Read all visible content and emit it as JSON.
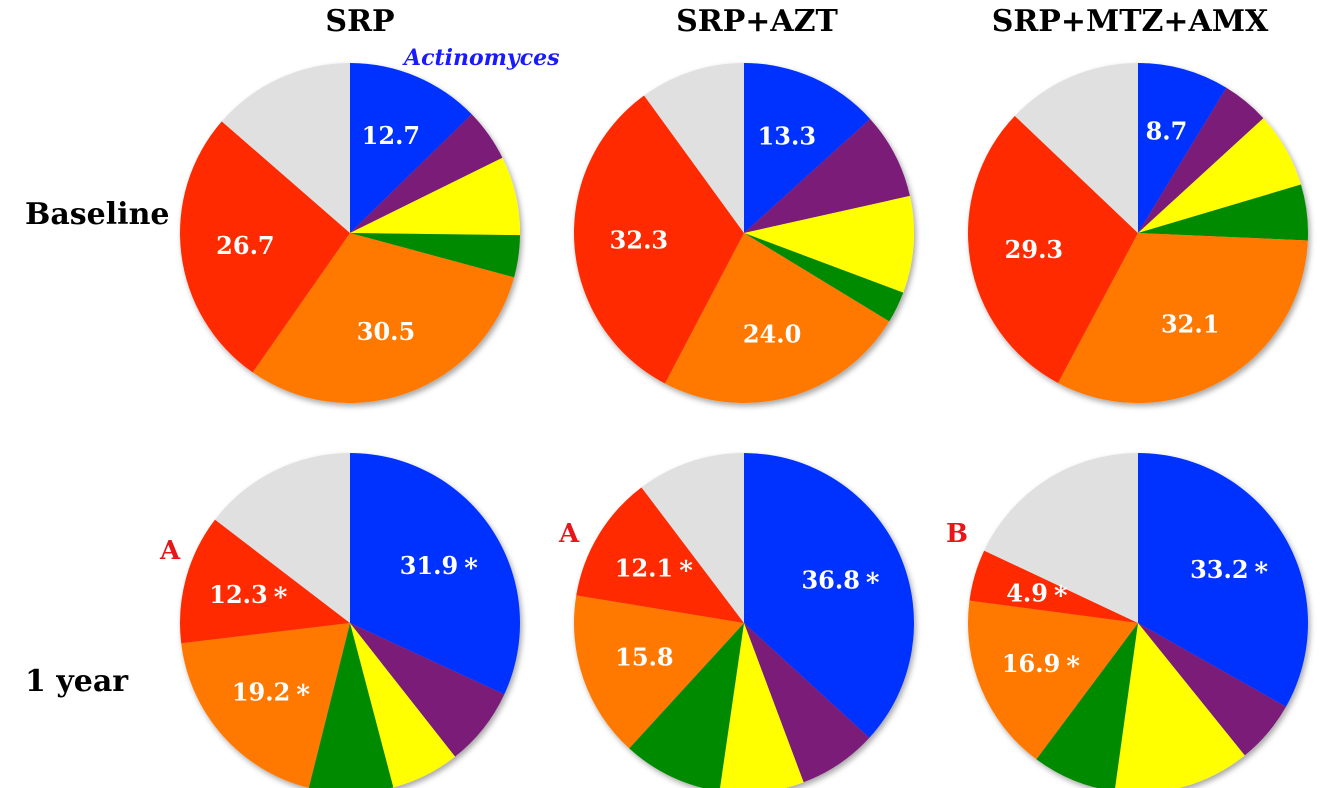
{
  "colors": {
    "blue": "#0033ff",
    "purple": "#7a1a78",
    "yellow": "#ffff00",
    "green": "#008a00",
    "orange": "#ff7800",
    "red": "#ff2a00",
    "gray": "#e0e0e0",
    "letter_red": "#e8151b",
    "annotation_blue": "#1a1aff"
  },
  "columns": [
    "SRP",
    "SRP+AZT",
    "SRP+MTZ+AMX"
  ],
  "rows": [
    "Baseline",
    "1 year"
  ],
  "annotation": "Actinomyces",
  "chart_data": [
    {
      "type": "pie",
      "column": "SRP",
      "row": "Baseline",
      "slices": [
        {
          "color": "blue",
          "value": 12.7,
          "label": "12.7"
        },
        {
          "color": "purple",
          "value": 5.0,
          "label": ""
        },
        {
          "color": "yellow",
          "value": 7.5,
          "label": ""
        },
        {
          "color": "green",
          "value": 4.0,
          "label": ""
        },
        {
          "color": "orange",
          "value": 30.5,
          "label": "30.5"
        },
        {
          "color": "red",
          "value": 26.7,
          "label": "26.7"
        },
        {
          "color": "gray",
          "value": 13.6,
          "label": ""
        }
      ]
    },
    {
      "type": "pie",
      "column": "SRP+AZT",
      "row": "Baseline",
      "slices": [
        {
          "color": "blue",
          "value": 13.3,
          "label": "13.3"
        },
        {
          "color": "purple",
          "value": 8.2,
          "label": ""
        },
        {
          "color": "yellow",
          "value": 9.2,
          "label": ""
        },
        {
          "color": "green",
          "value": 3.0,
          "label": ""
        },
        {
          "color": "orange",
          "value": 24.0,
          "label": "24.0"
        },
        {
          "color": "red",
          "value": 32.3,
          "label": "32.3"
        },
        {
          "color": "gray",
          "value": 10.0,
          "label": ""
        }
      ]
    },
    {
      "type": "pie",
      "column": "SRP+MTZ+AMX",
      "row": "Baseline",
      "slices": [
        {
          "color": "blue",
          "value": 8.7,
          "label": "8.7"
        },
        {
          "color": "purple",
          "value": 4.5,
          "label": ""
        },
        {
          "color": "yellow",
          "value": 7.2,
          "label": ""
        },
        {
          "color": "green",
          "value": 5.3,
          "label": ""
        },
        {
          "color": "orange",
          "value": 32.1,
          "label": "32.1"
        },
        {
          "color": "red",
          "value": 29.3,
          "label": "29.3"
        },
        {
          "color": "gray",
          "value": 12.9,
          "label": ""
        }
      ]
    },
    {
      "type": "pie",
      "column": "SRP",
      "row": "1 year",
      "letter": "A",
      "slices": [
        {
          "color": "blue",
          "value": 31.9,
          "label": "31.9",
          "significant": true
        },
        {
          "color": "purple",
          "value": 7.5,
          "label": ""
        },
        {
          "color": "yellow",
          "value": 6.5,
          "label": ""
        },
        {
          "color": "green",
          "value": 8.0,
          "label": ""
        },
        {
          "color": "orange",
          "value": 19.2,
          "label": "19.2",
          "significant": true
        },
        {
          "color": "red",
          "value": 12.3,
          "label": "12.3",
          "significant": true
        },
        {
          "color": "gray",
          "value": 14.6,
          "label": ""
        }
      ]
    },
    {
      "type": "pie",
      "column": "SRP+AZT",
      "row": "1 year",
      "letter": "A",
      "slices": [
        {
          "color": "blue",
          "value": 36.8,
          "label": "36.8",
          "significant": true
        },
        {
          "color": "purple",
          "value": 7.5,
          "label": ""
        },
        {
          "color": "yellow",
          "value": 8.0,
          "label": ""
        },
        {
          "color": "green",
          "value": 9.5,
          "label": ""
        },
        {
          "color": "orange",
          "value": 15.8,
          "label": "15.8"
        },
        {
          "color": "red",
          "value": 12.1,
          "label": "12.1",
          "significant": true
        },
        {
          "color": "gray",
          "value": 10.3,
          "label": ""
        }
      ]
    },
    {
      "type": "pie",
      "column": "SRP+MTZ+AMX",
      "row": "1 year",
      "letter": "B",
      "slices": [
        {
          "color": "blue",
          "value": 33.2,
          "label": "33.2",
          "significant": true
        },
        {
          "color": "purple",
          "value": 6.0,
          "label": ""
        },
        {
          "color": "yellow",
          "value": 13.0,
          "label": ""
        },
        {
          "color": "green",
          "value": 8.0,
          "label": ""
        },
        {
          "color": "orange",
          "value": 16.9,
          "label": "16.9",
          "significant": true
        },
        {
          "color": "red",
          "value": 4.9,
          "label": "4.9",
          "significant": true
        },
        {
          "color": "gray",
          "value": 18.0,
          "label": ""
        }
      ]
    }
  ]
}
